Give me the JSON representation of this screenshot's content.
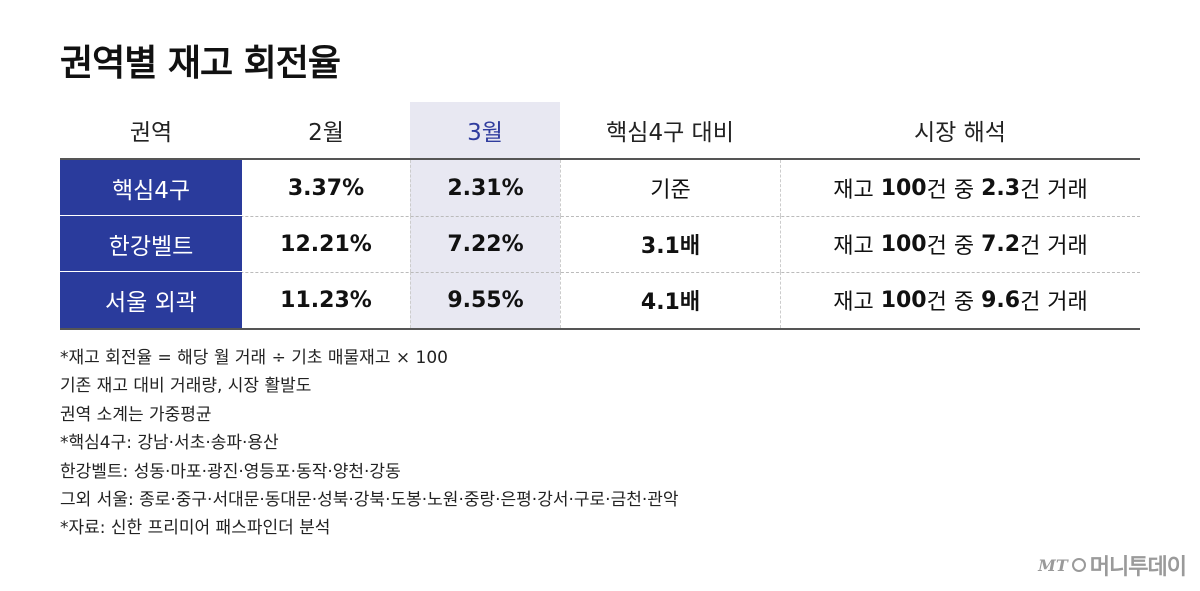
{
  "title": "권역별 재고 회전율",
  "table": {
    "headers": {
      "region": "권역",
      "feb": "2월",
      "mar": "3월",
      "ratio": "핵심4구 대비",
      "interp": "시장 해석"
    },
    "rows": [
      {
        "region": "핵심4구",
        "feb": "3.37%",
        "mar": "2.31%",
        "ratio": "기준",
        "interp_prefix": "재고 ",
        "interp_total": "100",
        "interp_mid": "건 중 ",
        "interp_count": "2.3",
        "interp_suffix": "건 거래"
      },
      {
        "region": "한강벨트",
        "feb": "12.21%",
        "mar": "7.22%",
        "ratio": "3.1배",
        "interp_prefix": "재고 ",
        "interp_total": "100",
        "interp_mid": "건 중 ",
        "interp_count": "7.2",
        "interp_suffix": "건 거래"
      },
      {
        "region": "서울 외곽",
        "feb": "11.23%",
        "mar": "9.55%",
        "ratio": "4.1배",
        "interp_prefix": "재고 ",
        "interp_total": "100",
        "interp_mid": "건 중 ",
        "interp_count": "9.6",
        "interp_suffix": "건 거래"
      }
    ]
  },
  "notes": [
    "*재고 회전율 = 해당 월 거래 ÷ 기초 매물재고 × 100",
    "기존 재고 대비 거래량, 시장 활발도",
    "권역 소계는 가중평균",
    "*핵심4구: 강남·서초·송파·용산",
    "한강벨트: 성동·마포·광진·영등포·동작·양천·강동",
    "그외 서울: 종로·중구·서대문·동대문·성북·강북·도봉·노원·중랑·은평·강서·구로·금천·관악",
    "*자료: 신한 프리미어 패스파인더 분석"
  ],
  "logo": {
    "mt": "MT",
    "name": "머니투데이"
  },
  "colors": {
    "region_bg": "#2a3b9c",
    "highlight_bg": "#e8e8f2",
    "highlight_text": "#2f3c9e"
  }
}
